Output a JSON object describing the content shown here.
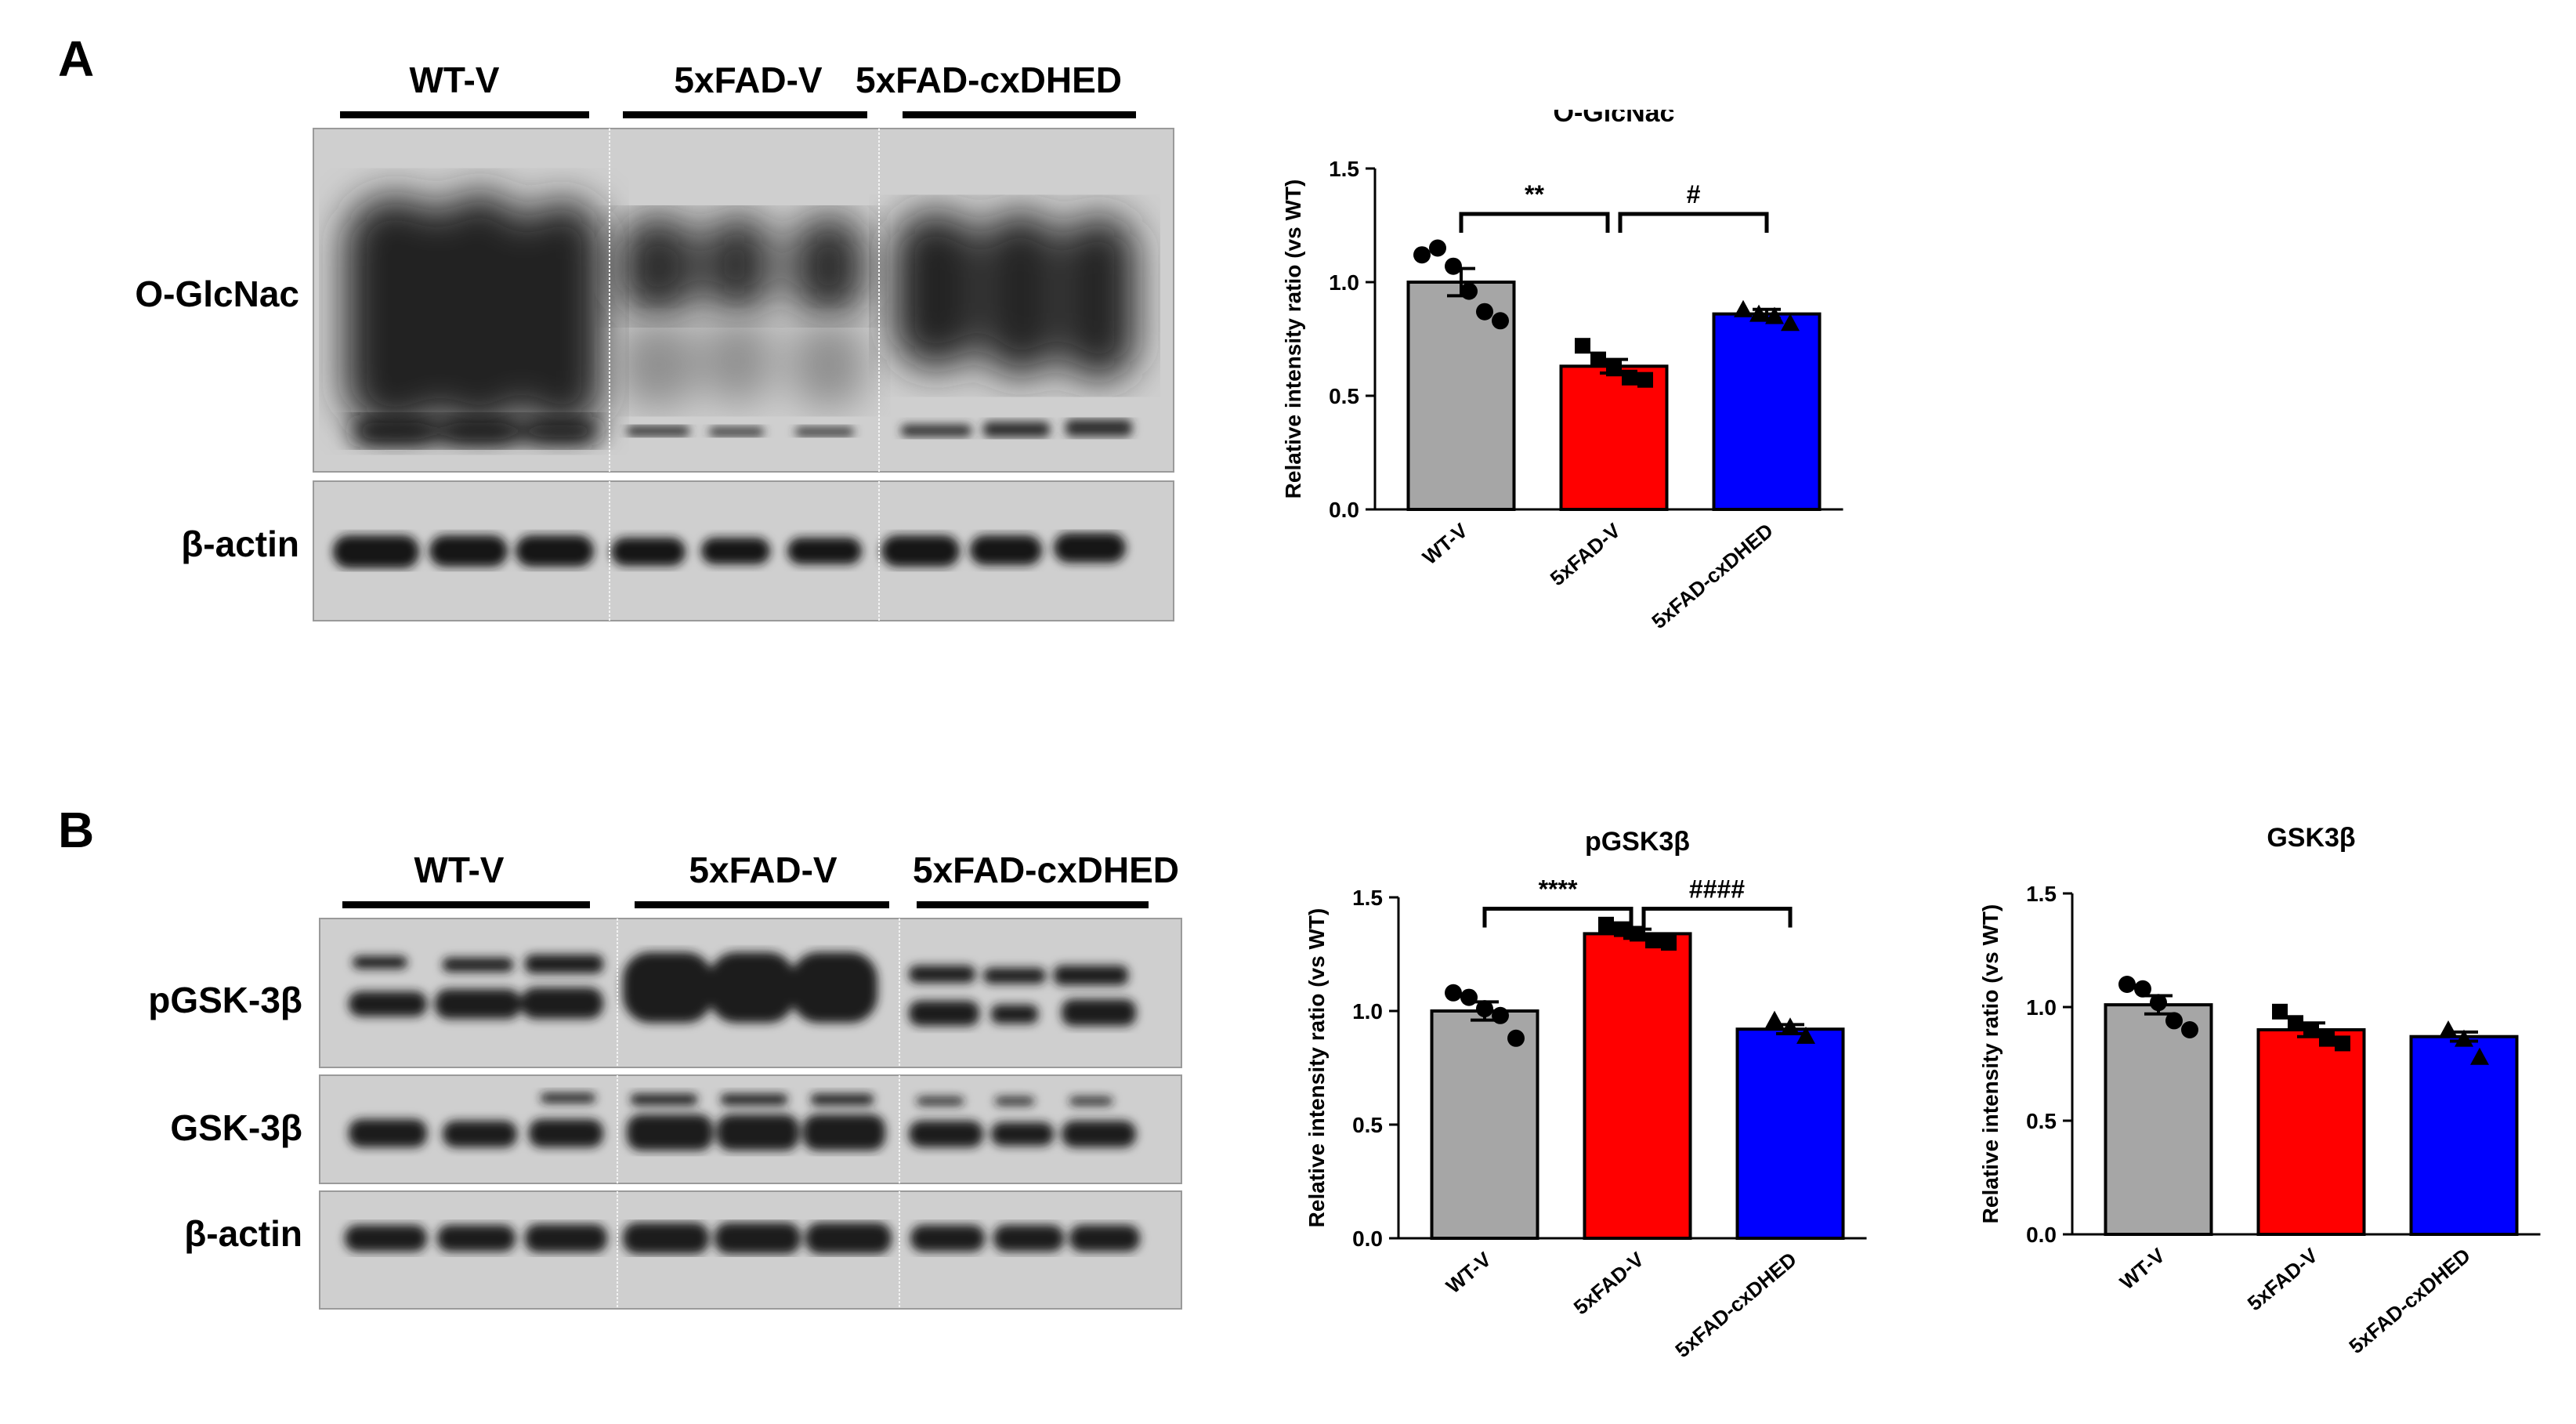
{
  "panels": {
    "A": {
      "letter": "A",
      "groups": [
        "WT-V",
        "5xFAD-V",
        "5xFAD-cxDHED"
      ],
      "rows": [
        "O-GlcNac",
        "β-actin"
      ]
    },
    "B": {
      "letter": "B",
      "groups": [
        "WT-V",
        "5xFAD-V",
        "5xFAD-cxDHED"
      ],
      "rows": [
        "pGSK-3β",
        "GSK-3β",
        "β-actin"
      ]
    }
  },
  "colors": {
    "WT-V": "#a6a6a6",
    "5xFAD-V": "#ff0000",
    "5xFAD-cxDHED": "#0000ff"
  },
  "chart_data": [
    {
      "type": "bar",
      "title": "O-GlcNac",
      "xlabel": "",
      "ylabel": "Relative intensity ratio (vs WT)",
      "categories": [
        "WT-V",
        "5xFAD-V",
        "5xFAD-cxDHED"
      ],
      "values": [
        1.0,
        0.63,
        0.86
      ],
      "sem": [
        0.06,
        0.03,
        0.02
      ],
      "points": [
        [
          1.12,
          1.15,
          1.07,
          0.96,
          0.87,
          0.83
        ],
        [
          0.72,
          0.66,
          0.62,
          0.58,
          0.57
        ],
        [
          0.88,
          0.86,
          0.85,
          0.82
        ]
      ],
      "markers": [
        "circle",
        "square",
        "triangle"
      ],
      "ylim": [
        0,
        1.5
      ],
      "yticks": [
        "0.0",
        "0.5",
        "1.0",
        "1.5"
      ],
      "significance": [
        {
          "from": 0,
          "to": 1,
          "label": "**"
        },
        {
          "from": 1,
          "to": 2,
          "label": "#"
        }
      ],
      "grid": false
    },
    {
      "type": "bar",
      "title": "pGSK3β",
      "xlabel": "",
      "ylabel": "Relative intensity ratio (vs WT)",
      "categories": [
        "WT-V",
        "5xFAD-V",
        "5xFAD-cxDHED"
      ],
      "values": [
        1.0,
        1.34,
        0.92
      ],
      "sem": [
        0.04,
        0.02,
        0.02
      ],
      "points": [
        [
          1.08,
          1.06,
          1.01,
          0.98,
          0.88
        ],
        [
          1.38,
          1.36,
          1.34,
          1.31,
          1.3
        ],
        [
          0.96,
          0.93,
          0.89
        ]
      ],
      "markers": [
        "circle",
        "square",
        "triangle"
      ],
      "ylim": [
        0,
        1.5
      ],
      "yticks": [
        "0.0",
        "0.5",
        "1.0",
        "1.5"
      ],
      "significance": [
        {
          "from": 0,
          "to": 1,
          "label": "****"
        },
        {
          "from": 1,
          "to": 2,
          "label": "####"
        }
      ],
      "grid": false
    },
    {
      "type": "bar",
      "title": "GSK3β",
      "xlabel": "",
      "ylabel": "Relative intensity ratio (vs WT)",
      "categories": [
        "WT-V",
        "5xFAD-V",
        "5xFAD-cxDHED"
      ],
      "values": [
        1.01,
        0.9,
        0.87
      ],
      "sem": [
        0.04,
        0.03,
        0.02
      ],
      "points": [
        [
          1.1,
          1.08,
          1.02,
          0.94,
          0.9
        ],
        [
          0.98,
          0.93,
          0.9,
          0.86,
          0.84
        ],
        [
          0.9,
          0.86,
          0.78
        ]
      ],
      "markers": [
        "circle",
        "square",
        "triangle"
      ],
      "ylim": [
        0,
        1.5
      ],
      "yticks": [
        "0.0",
        "0.5",
        "1.0",
        "1.5"
      ],
      "significance": [],
      "grid": false
    }
  ]
}
